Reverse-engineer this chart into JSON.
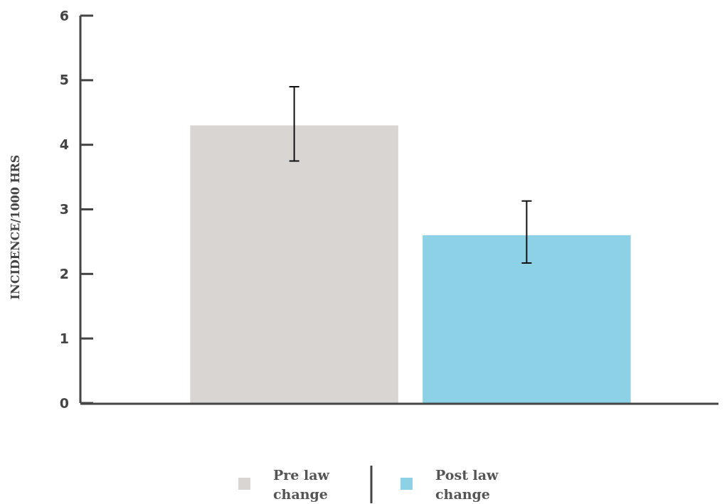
{
  "chart_data": {
    "type": "bar",
    "ylabel": "INCIDENCE/1000 HRS",
    "categories": [
      null
    ],
    "series": [
      {
        "name": "Pre law change",
        "color": "#d9d5d2",
        "values": [
          4.3
        ],
        "errors": [
          [
            3.75,
            4.9
          ]
        ]
      },
      {
        "name": "Post law change",
        "color": "#8dd1e6",
        "values": [
          2.6
        ],
        "errors": [
          [
            2.17,
            3.13
          ]
        ]
      }
    ],
    "ylim": [
      0,
      6
    ],
    "yticks": [
      0,
      1,
      2,
      3,
      4,
      5,
      6
    ],
    "grid": false,
    "legend": "bottom"
  }
}
